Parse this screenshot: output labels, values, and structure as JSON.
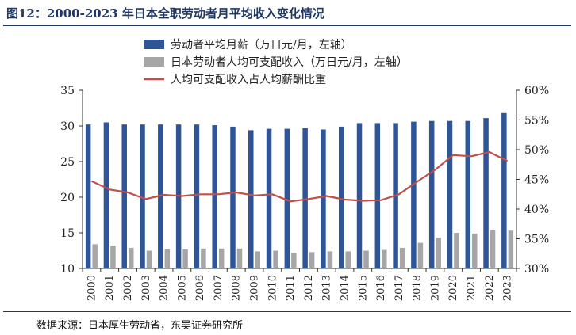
{
  "title": "图12：2000-2023 年日本全职劳动者月平均收入变化情况",
  "source": "数据来源：日本厚生劳动省，东吴证券研究所",
  "chart_data": {
    "type": "bar",
    "categories": [
      "2000",
      "2001",
      "2002",
      "2003",
      "2004",
      "2005",
      "2006",
      "2007",
      "2008",
      "2009",
      "2010",
      "2011",
      "2012",
      "2013",
      "2014",
      "2015",
      "2016",
      "2017",
      "2018",
      "2019",
      "2020",
      "2021",
      "2022",
      "2023"
    ],
    "series": [
      {
        "name": "劳动者平均月薪（万日元/月，左轴）",
        "type": "bar",
        "axis": "left",
        "color": "#2F5597",
        "values": [
          30.2,
          30.5,
          30.2,
          30.2,
          30.2,
          30.2,
          30.2,
          30.1,
          29.9,
          29.4,
          29.6,
          29.6,
          29.7,
          29.5,
          29.9,
          30.4,
          30.4,
          30.4,
          30.6,
          30.7,
          30.7,
          30.7,
          31.1,
          31.8
        ]
      },
      {
        "name": "日本劳动者人均可支配收入（万日元/月，左轴）",
        "type": "bar",
        "axis": "left",
        "color": "#A6A6A6",
        "values": [
          13.4,
          13.2,
          12.9,
          12.5,
          12.7,
          12.7,
          12.8,
          12.8,
          12.8,
          12.4,
          12.5,
          12.2,
          12.3,
          12.4,
          12.4,
          12.5,
          12.6,
          12.9,
          13.6,
          14.3,
          15.0,
          14.9,
          15.4,
          15.3
        ]
      },
      {
        "name": "人均可支配收入占人均薪酬比重",
        "type": "line",
        "axis": "right",
        "color": "#C0504D",
        "values": [
          0.447,
          0.433,
          0.428,
          0.417,
          0.424,
          0.422,
          0.425,
          0.425,
          0.428,
          0.423,
          0.425,
          0.413,
          0.417,
          0.422,
          0.416,
          0.414,
          0.415,
          0.425,
          0.446,
          0.466,
          0.491,
          0.489,
          0.496,
          0.481
        ]
      }
    ],
    "y_left": {
      "min": 10,
      "max": 35,
      "ticks": [
        10,
        15,
        20,
        25,
        30,
        35
      ]
    },
    "y_right": {
      "min": 0.3,
      "max": 0.6,
      "ticks": [
        "30%",
        "35%",
        "40%",
        "45%",
        "50%",
        "55%",
        "60%"
      ]
    },
    "grid": false,
    "legend": "top-left"
  }
}
